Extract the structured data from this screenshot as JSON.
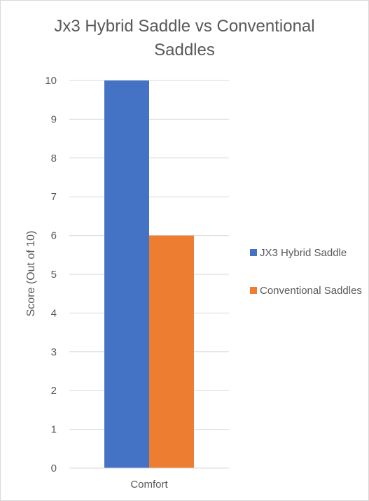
{
  "chart_data": {
    "type": "bar",
    "title": "Jx3 Hybrid Saddle vs Conventional Saddles",
    "title_lines": [
      "Jx3 Hybrid Saddle vs Conventional",
      "Saddles"
    ],
    "categories": [
      "Comfort"
    ],
    "series": [
      {
        "name": "JX3 Hybrid Saddle",
        "values": [
          10
        ],
        "color": "#4472c4"
      },
      {
        "name": "Conventional Saddles",
        "values": [
          6
        ],
        "color": "#ed7d31"
      }
    ],
    "xlabel": "",
    "ylabel": "Score (Out of 10)",
    "ylim": [
      0,
      10
    ],
    "yticks": [
      0,
      1,
      2,
      3,
      4,
      5,
      6,
      7,
      8,
      9,
      10
    ],
    "grid": true,
    "legend_position": "right"
  }
}
